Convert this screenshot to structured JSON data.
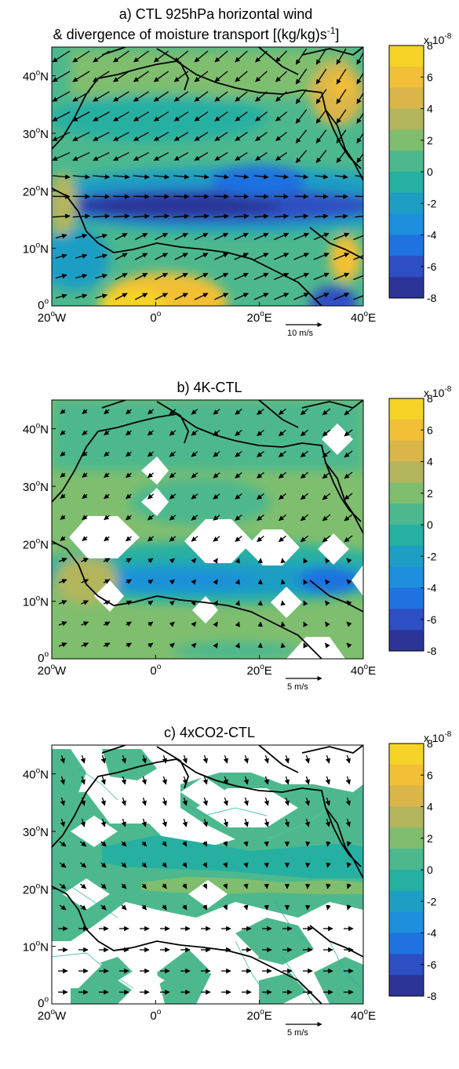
{
  "panels": [
    {
      "title_line1": "a) CTL 925hPa horizontal wind",
      "title_line2": "& divergence of moisture transport [(kg/kg)s",
      "title_sup": "-1",
      "title_close": "]",
      "scale_label": "10 m/s"
    },
    {
      "title_line1": "b) 4K-CTL",
      "scale_label": "5 m/s"
    },
    {
      "title_line1": "c) 4xCO2-CTL",
      "scale_label": "5 m/s"
    }
  ],
  "axes": {
    "x_ticks": [
      {
        "value": -20,
        "num": "20",
        "hemi": "W"
      },
      {
        "value": 0,
        "num": "0",
        "hemi": ""
      },
      {
        "value": 20,
        "num": "20",
        "hemi": "E"
      },
      {
        "value": 40,
        "num": "40",
        "hemi": "E"
      }
    ],
    "y_ticks": [
      {
        "value": 0,
        "num": "0",
        "hemi": ""
      },
      {
        "value": 10,
        "num": "10",
        "hemi": "N"
      },
      {
        "value": 20,
        "num": "20",
        "hemi": "N"
      },
      {
        "value": 30,
        "num": "30",
        "hemi": "N"
      },
      {
        "value": 40,
        "num": "40",
        "hemi": "N"
      }
    ],
    "degree_symbol": "o"
  },
  "colorbar": {
    "multiplier_prefix": "x 10",
    "multiplier_exp": "-8",
    "ticks": [
      "8",
      "6",
      "4",
      "2",
      "0",
      "-2",
      "-4",
      "-6",
      "-8"
    ],
    "colors": [
      "#f5d327",
      "#f2bf36",
      "#d9b54a",
      "#b2b55c",
      "#7fbe6e",
      "#4db88e",
      "#25b0a2",
      "#1e9ec4",
      "#1d8fdc",
      "#1f72e0",
      "#2d4fc3",
      "#2c3497"
    ]
  },
  "chart_data": [
    {
      "type": "heatmap",
      "title": "a) CTL 925hPa horizontal wind & divergence of moisture transport [(kg/kg)s-1]",
      "variable": "divergence of moisture transport",
      "units": "(kg/kg)s-1 x 10^-8",
      "xlim": [
        -20,
        40
      ],
      "ylim": [
        0,
        45
      ],
      "x_ticks": [
        -20,
        0,
        20,
        40
      ],
      "y_ticks": [
        0,
        10,
        20,
        30,
        40
      ],
      "clim": [
        -8,
        8
      ],
      "vector_scale": "10 m/s",
      "features": [
        {
          "name": "convergence band",
          "lat": 15,
          "lon_range": [
            -12,
            38
          ],
          "value": -7
        },
        {
          "name": "Gulf of Guinea divergence",
          "lat": 3,
          "lon": -3,
          "value": 7
        },
        {
          "name": "Arabian divergence",
          "lat": 33,
          "lon": 34,
          "value": 5
        },
        {
          "name": "Ethiopian divergence",
          "lat": 10,
          "lon": 36,
          "value": 6
        },
        {
          "name": "Mediterranean",
          "lat": 38,
          "lon_range": [
            -5,
            35
          ],
          "value": 0.5
        }
      ]
    },
    {
      "type": "heatmap",
      "title": "b) 4K-CTL",
      "xlim": [
        -20,
        40
      ],
      "ylim": [
        0,
        45
      ],
      "clim": [
        -8,
        8
      ],
      "vector_scale": "5 m/s",
      "features": [
        {
          "name": "weak convergence band",
          "lat": 13,
          "lon_range": [
            -12,
            38
          ],
          "value": -3
        },
        {
          "name": "background",
          "value": 1
        }
      ]
    },
    {
      "type": "heatmap",
      "title": "c) 4xCO2-CTL",
      "xlim": [
        -20,
        40
      ],
      "ylim": [
        0,
        45
      ],
      "clim": [
        -8,
        8
      ],
      "vector_scale": "5 m/s",
      "features": [
        {
          "name": "weak convergence band",
          "lat": 17,
          "lon_range": [
            -8,
            38
          ],
          "value": -1.5
        },
        {
          "name": "weak divergence",
          "lat": 13,
          "lon_range": [
            5,
            35
          ],
          "value": 1.5
        },
        {
          "name": "background",
          "value": 0.5
        }
      ]
    }
  ]
}
